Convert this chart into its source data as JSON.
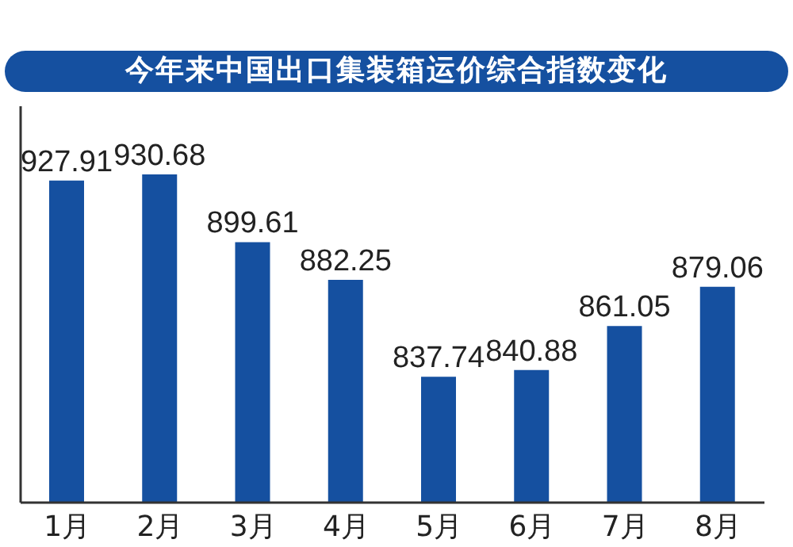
{
  "chart_data": {
    "type": "bar",
    "title": "今年来中国出口集装箱运价综合指数变化",
    "categories": [
      "1月",
      "2月",
      "3月",
      "4月",
      "5月",
      "6月",
      "7月",
      "8月"
    ],
    "values": [
      927.91,
      930.68,
      899.61,
      882.25,
      837.74,
      840.88,
      861.05,
      879.06
    ],
    "color": "#1550a0",
    "ylim": [
      780,
      962
    ],
    "data_labels": true,
    "tick_labels": "x",
    "grid": false,
    "legend": false
  }
}
